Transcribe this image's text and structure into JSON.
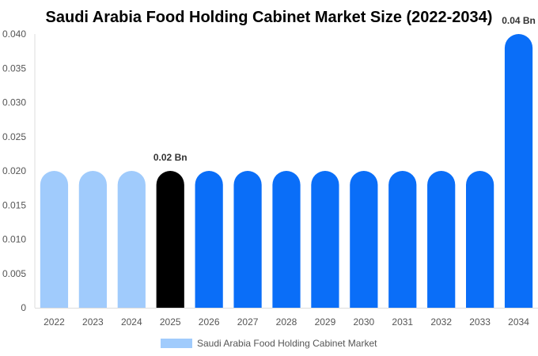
{
  "chart_data": {
    "type": "bar",
    "title": "Saudi Arabia Food Holding Cabinet Market Size (2022-2034)",
    "categories": [
      "2022",
      "2023",
      "2024",
      "2025",
      "2026",
      "2027",
      "2028",
      "2029",
      "2030",
      "2031",
      "2032",
      "2033",
      "2034"
    ],
    "series": [
      {
        "name": "Saudi Arabia Food Holding Cabinet Market",
        "values": [
          0.02,
          0.02,
          0.02,
          0.02,
          0.02,
          0.02,
          0.02,
          0.02,
          0.02,
          0.02,
          0.02,
          0.02,
          0.04
        ]
      }
    ],
    "bar_colors": [
      "#a0cbfc",
      "#a0cbfc",
      "#a0cbfc",
      "#000000",
      "#0a6ef8",
      "#0a6ef8",
      "#0a6ef8",
      "#0a6ef8",
      "#0a6ef8",
      "#0a6ef8",
      "#0a6ef8",
      "#0a6ef8",
      "#0a6ef8"
    ],
    "data_labels": [
      {
        "category": "2025",
        "text": "0.02 Bn"
      },
      {
        "category": "2034",
        "text": "0.04 Bn"
      }
    ],
    "y_ticks": [
      "0",
      "0.005",
      "0.010",
      "0.015",
      "0.020",
      "0.025",
      "0.030",
      "0.035",
      "0.040"
    ],
    "ylim": [
      0,
      0.04
    ],
    "grid": false,
    "legend_position": "bottom",
    "legend_color": "#a0cbfc"
  }
}
